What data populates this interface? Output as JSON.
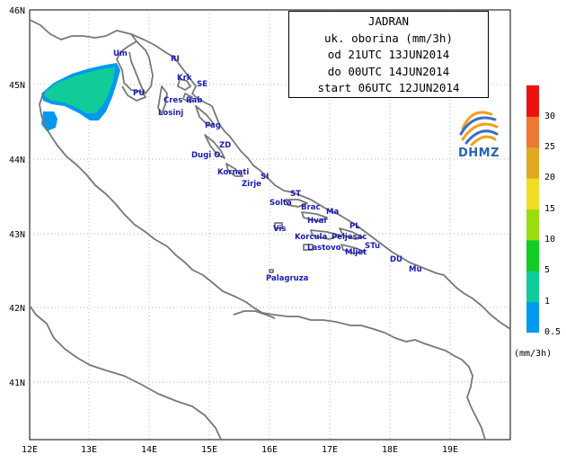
{
  "title_lines": [
    "JADRAN",
    "uk. oborina (mm/3h)",
    "od 21UTC 13JUN2014",
    "do 00UTC 14JUN2014",
    "start 06UTC 12JUN2014"
  ],
  "lon_ticks": [
    "12E",
    "13E",
    "14E",
    "15E",
    "16E",
    "17E",
    "18E",
    "19E"
  ],
  "lat_ticks": [
    "46N",
    "45N",
    "44N",
    "43N",
    "42N",
    "41N"
  ],
  "places": [
    "Um",
    "RI",
    "Krk",
    "SE",
    "PU",
    "Cres",
    "Rab",
    "Losinj",
    "Pag",
    "ZD",
    "Dugi O.",
    "Kornati",
    "SI",
    "Zirje",
    "ST",
    "Solta",
    "Brac",
    "Ma",
    "Hvar",
    "PL",
    "Vis",
    "Korcula",
    "Peljesac",
    "Lastovo",
    "STu",
    "Mljet",
    "DU",
    "Mu",
    "Palagruza"
  ],
  "logo": {
    "icon": "dhmz-logo-swirl-icon",
    "text": "DHMZ"
  },
  "legend": {
    "levels": [
      "0.5",
      "1",
      "5",
      "10",
      "15",
      "20",
      "25",
      "30"
    ],
    "colors": [
      "#0099ee",
      "#11cc99",
      "#11cc22",
      "#99dd11",
      "#eedd22",
      "#ddaa22",
      "#ee7733",
      "#ee1111"
    ],
    "units": "(mm/3h)"
  },
  "colors": {
    "coast": "#777777",
    "place_label": "#1a1ab4",
    "precip_light": "#11cc99",
    "precip_vlight": "#0099ee"
  }
}
